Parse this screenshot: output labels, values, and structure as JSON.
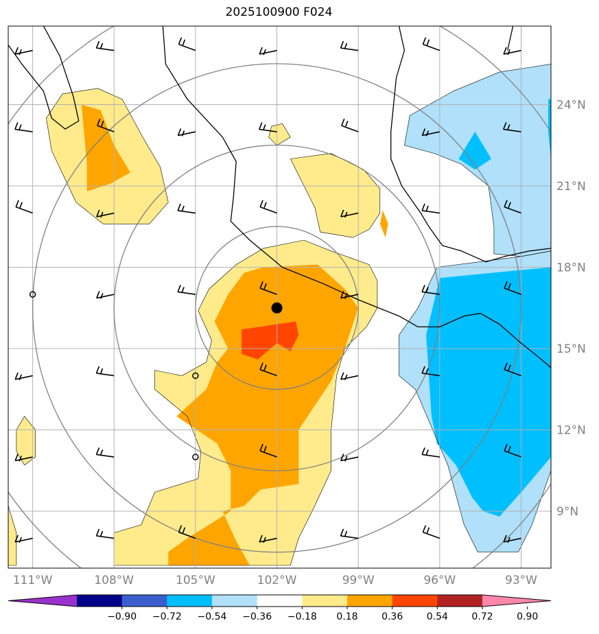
{
  "title": "2025100900 F024",
  "chart_data": {
    "type": "contour_map",
    "title": "2025100900 F024",
    "x_axis": {
      "ticks": [
        -111,
        -108,
        -105,
        -102,
        -99,
        -96,
        -93
      ],
      "labels": [
        "111°W",
        "108°W",
        "105°W",
        "102°W",
        "99°W",
        "96°W",
        "93°W"
      ]
    },
    "y_axis": {
      "ticks": [
        9,
        12,
        15,
        18,
        21,
        24
      ],
      "labels": [
        "9°N",
        "12°N",
        "15°N",
        "18°N",
        "21°N",
        "24°N"
      ]
    },
    "lon_range": [
      -111.9,
      -91.9
    ],
    "lat_range": [
      6.9,
      26.9
    ],
    "grid": true,
    "storm_center": {
      "lon": -102.0,
      "lat": 16.5
    },
    "range_rings": [
      3,
      6,
      9,
      12
    ],
    "colorbar": {
      "ticks": [
        "−0.90",
        "−0.72",
        "−0.54",
        "−0.36",
        "−0.18",
        "0.18",
        "0.36",
        "0.54",
        "0.72",
        "0.90"
      ],
      "colors": [
        "#9932cc",
        "#00008b",
        "#3a5fcd",
        "#00bfff",
        "#b0e0fa",
        "#ffffff",
        "#ffeb8c",
        "#ffa500",
        "#ff4500",
        "#b22222",
        "#ff88aa"
      ],
      "extend": "both"
    },
    "fills": [
      {
        "level": 0.18,
        "color": "#ffeb8c",
        "name": "shade-0.18-main",
        "points": [
          [
            -102.5,
            18.7
          ],
          [
            -101.0,
            19.0
          ],
          [
            -100.0,
            18.6
          ],
          [
            -98.6,
            18.1
          ],
          [
            -98.3,
            17.5
          ],
          [
            -98.3,
            16.5
          ],
          [
            -98.7,
            15.8
          ],
          [
            -99.5,
            15.0
          ],
          [
            -99.8,
            14.0
          ],
          [
            -100.0,
            12.0
          ],
          [
            -100.0,
            10.5
          ],
          [
            -100.7,
            9.0
          ],
          [
            -101.2,
            8.0
          ],
          [
            -101.5,
            7.0
          ],
          [
            -108.0,
            7.0
          ],
          [
            -108.0,
            8.2
          ],
          [
            -107.0,
            8.5
          ],
          [
            -106.5,
            9.7
          ],
          [
            -104.9,
            10.2
          ],
          [
            -104.8,
            11.2
          ],
          [
            -105.3,
            12.5
          ],
          [
            -106.5,
            13.5
          ],
          [
            -106.5,
            14.2
          ],
          [
            -105.5,
            14.0
          ],
          [
            -104.6,
            14.5
          ],
          [
            -104.4,
            15.3
          ],
          [
            -104.9,
            16.4
          ],
          [
            -104.5,
            17.2
          ],
          [
            -103.5,
            18.1
          ]
        ]
      },
      {
        "level": 0.18,
        "color": "#ffeb8c",
        "name": "shade-0.18-north",
        "points": [
          [
            -101.5,
            22.0
          ],
          [
            -100.0,
            22.2
          ],
          [
            -98.8,
            21.6
          ],
          [
            -98.2,
            20.9
          ],
          [
            -98.2,
            20.0
          ],
          [
            -98.6,
            19.4
          ],
          [
            -99.2,
            19.1
          ],
          [
            -100.4,
            19.3
          ],
          [
            -100.6,
            20.2
          ],
          [
            -101.0,
            21.0
          ]
        ]
      },
      {
        "level": 0.18,
        "color": "#ffeb8c",
        "name": "shade-0.18-nw",
        "points": [
          [
            -109.9,
            24.4
          ],
          [
            -108.6,
            24.6
          ],
          [
            -107.7,
            24.2
          ],
          [
            -107.0,
            22.9
          ],
          [
            -106.3,
            21.7
          ],
          [
            -106.0,
            20.4
          ],
          [
            -106.7,
            19.6
          ],
          [
            -108.4,
            19.6
          ],
          [
            -109.4,
            20.4
          ],
          [
            -110.3,
            22.3
          ],
          [
            -110.5,
            23.5
          ]
        ]
      },
      {
        "level": 0.18,
        "color": "#ffeb8c",
        "name": "shade-0.18-sw",
        "points": [
          [
            -111.3,
            12.5
          ],
          [
            -110.9,
            12.0
          ],
          [
            -110.9,
            11.0
          ],
          [
            -111.3,
            10.7
          ],
          [
            -111.6,
            11.2
          ],
          [
            -111.6,
            12.0
          ]
        ]
      },
      {
        "level": 0.18,
        "color": "#ffeb8c",
        "name": "shade-0.18-west-edge",
        "points": [
          [
            -111.9,
            9.2
          ],
          [
            -111.6,
            8.2
          ],
          [
            -111.6,
            7.0
          ],
          [
            -111.9,
            7.0
          ]
        ]
      },
      {
        "level": 0.18,
        "color": "#ffeb8c",
        "name": "shade-0.18-speck",
        "points": [
          [
            -102.2,
            23.2
          ],
          [
            -101.8,
            23.3
          ],
          [
            -101.5,
            22.8
          ],
          [
            -102.0,
            22.5
          ],
          [
            -102.3,
            22.8
          ]
        ]
      },
      {
        "level": 0.36,
        "color": "#ffa500",
        "name": "shade-0.36-main",
        "points": [
          [
            -102.5,
            18.0
          ],
          [
            -100.5,
            18.1
          ],
          [
            -99.5,
            17.2
          ],
          [
            -99.0,
            16.5
          ],
          [
            -99.5,
            15.0
          ],
          [
            -100.0,
            13.8
          ],
          [
            -101.2,
            12.0
          ],
          [
            -101.2,
            10.0
          ],
          [
            -102.6,
            9.8
          ],
          [
            -103.2,
            9.2
          ],
          [
            -104.0,
            9.0
          ],
          [
            -103.5,
            7.9
          ],
          [
            -103.0,
            7.0
          ],
          [
            -106.0,
            7.0
          ],
          [
            -106.0,
            7.5
          ],
          [
            -105.3,
            8.0
          ],
          [
            -104.5,
            8.5
          ],
          [
            -103.7,
            9.0
          ],
          [
            -103.7,
            10.5
          ],
          [
            -104.2,
            11.5
          ],
          [
            -105.7,
            12.5
          ],
          [
            -104.6,
            13.5
          ],
          [
            -104.2,
            14.5
          ],
          [
            -103.8,
            15.0
          ],
          [
            -104.3,
            16.0
          ],
          [
            -103.8,
            17.0
          ],
          [
            -103.2,
            17.8
          ]
        ]
      },
      {
        "level": 0.36,
        "color": "#ffa500",
        "name": "shade-0.36-nw",
        "points": [
          [
            -109.2,
            24.0
          ],
          [
            -108.5,
            23.8
          ],
          [
            -108.0,
            22.5
          ],
          [
            -107.4,
            21.5
          ],
          [
            -108.1,
            21.1
          ],
          [
            -109.0,
            20.8
          ],
          [
            -109.0,
            21.8
          ]
        ]
      },
      {
        "level": 0.36,
        "color": "#ffa500",
        "name": "shade-0.36-speck",
        "points": [
          [
            -98.1,
            20.1
          ],
          [
            -97.9,
            19.6
          ],
          [
            -98.0,
            19.1
          ],
          [
            -98.2,
            19.6
          ]
        ]
      },
      {
        "level": 0.54,
        "color": "#ff4500",
        "name": "shade-0.54-core",
        "points": [
          [
            -103.3,
            15.7
          ],
          [
            -102.0,
            15.9
          ],
          [
            -101.3,
            16.0
          ],
          [
            -101.2,
            15.5
          ],
          [
            -101.5,
            14.9
          ],
          [
            -102.0,
            15.2
          ],
          [
            -102.7,
            14.6
          ],
          [
            -103.3,
            14.8
          ]
        ]
      },
      {
        "level": -0.18,
        "color": "#b0e0fa",
        "name": "shade-neg0.18-gulf",
        "points": [
          [
            -91.9,
            25.5
          ],
          [
            -93.8,
            25.2
          ],
          [
            -95.5,
            24.5
          ],
          [
            -97.1,
            23.6
          ],
          [
            -97.3,
            22.5
          ],
          [
            -96.2,
            22.2
          ],
          [
            -95.2,
            21.8
          ],
          [
            -94.2,
            21.0
          ],
          [
            -94.0,
            19.5
          ],
          [
            -94.0,
            18.5
          ],
          [
            -93.0,
            18.4
          ],
          [
            -91.9,
            18.6
          ]
        ]
      },
      {
        "level": -0.18,
        "color": "#b0e0fa",
        "name": "shade-neg0.18-pacific",
        "points": [
          [
            -96.1,
            18.0
          ],
          [
            -93.0,
            18.4
          ],
          [
            -91.9,
            18.6
          ],
          [
            -91.9,
            10.5
          ],
          [
            -92.6,
            8.5
          ],
          [
            -93.1,
            7.5
          ],
          [
            -94.6,
            7.5
          ],
          [
            -95.1,
            8.5
          ],
          [
            -95.7,
            10.7
          ],
          [
            -96.9,
            13.5
          ],
          [
            -97.5,
            14.0
          ],
          [
            -97.5,
            15.5
          ],
          [
            -96.8,
            16.5
          ]
        ]
      },
      {
        "level": -0.36,
        "color": "#00bfff",
        "name": "shade-neg0.36-pacific",
        "points": [
          [
            -96.0,
            17.6
          ],
          [
            -94.0,
            17.8
          ],
          [
            -91.9,
            18.0
          ],
          [
            -91.9,
            11.0
          ],
          [
            -93.0,
            9.7
          ],
          [
            -93.8,
            8.8
          ],
          [
            -94.4,
            9.0
          ],
          [
            -94.8,
            9.5
          ],
          [
            -95.4,
            10.7
          ],
          [
            -96.1,
            11.5
          ],
          [
            -96.3,
            12.5
          ],
          [
            -96.4,
            14.0
          ],
          [
            -96.5,
            15.5
          ]
        ]
      },
      {
        "level": -0.36,
        "color": "#00bfff",
        "name": "shade-neg0.36-gulf",
        "points": [
          [
            -94.7,
            23.0
          ],
          [
            -94.1,
            22.0
          ],
          [
            -94.7,
            21.6
          ],
          [
            -95.3,
            22.0
          ]
        ]
      },
      {
        "level": -0.36,
        "color": "#00bfff",
        "name": "shade-neg0.36-east",
        "points": [
          [
            -92.0,
            24.2
          ],
          [
            -91.9,
            24.2
          ],
          [
            -91.9,
            22.0
          ],
          [
            -92.0,
            23.0
          ]
        ]
      }
    ],
    "coastlines": [
      {
        "name": "coastline-mainland",
        "points": [
          [
            -106.2,
            26.9
          ],
          [
            -106.1,
            25.5
          ],
          [
            -105.3,
            24.2
          ],
          [
            -104.0,
            22.8
          ],
          [
            -103.5,
            21.9
          ],
          [
            -103.6,
            20.6
          ],
          [
            -103.7,
            19.7
          ],
          [
            -103.0,
            19.0
          ],
          [
            -101.8,
            18.0
          ],
          [
            -100.3,
            17.4
          ],
          [
            -99.0,
            16.8
          ],
          [
            -97.5,
            16.2
          ],
          [
            -96.8,
            15.8
          ],
          [
            -96.0,
            15.8
          ],
          [
            -95.1,
            16.2
          ],
          [
            -94.5,
            16.3
          ],
          [
            -93.8,
            15.9
          ],
          [
            -93.0,
            15.2
          ],
          [
            -92.5,
            14.8
          ],
          [
            -91.9,
            14.3
          ]
        ]
      },
      {
        "name": "coastline-gulf",
        "points": [
          [
            -97.5,
            26.9
          ],
          [
            -97.3,
            26.0
          ],
          [
            -97.6,
            25.0
          ],
          [
            -97.7,
            24.0
          ],
          [
            -97.8,
            23.0
          ],
          [
            -97.8,
            22.0
          ],
          [
            -97.4,
            21.0
          ],
          [
            -96.7,
            20.0
          ],
          [
            -96.4,
            19.5
          ],
          [
            -95.9,
            18.8
          ],
          [
            -95.2,
            18.6
          ],
          [
            -94.3,
            18.2
          ],
          [
            -93.6,
            18.4
          ],
          [
            -92.7,
            18.6
          ],
          [
            -91.9,
            18.7
          ]
        ]
      },
      {
        "name": "coastline-baja",
        "points": [
          [
            -110.6,
            26.9
          ],
          [
            -110.0,
            25.8
          ],
          [
            -109.5,
            24.3
          ],
          [
            -109.3,
            23.4
          ],
          [
            -109.8,
            23.1
          ],
          [
            -110.3,
            23.5
          ],
          [
            -110.6,
            24.5
          ],
          [
            -111.4,
            25.5
          ],
          [
            -111.9,
            26.2
          ]
        ]
      },
      {
        "name": "coastline-east",
        "points": [
          [
            -93.3,
            26.9
          ],
          [
            -93.5,
            26.0
          ]
        ]
      }
    ],
    "wind_stations": [
      {
        "lon": -111,
        "lat": 26
      },
      {
        "lon": -108,
        "lat": 26
      },
      {
        "lon": -105,
        "lat": 26
      },
      {
        "lon": -102,
        "lat": 26
      },
      {
        "lon": -99,
        "lat": 26
      },
      {
        "lon": -96,
        "lat": 26
      },
      {
        "lon": -93,
        "lat": 26
      },
      {
        "lon": -111,
        "lat": 23
      },
      {
        "lon": -108,
        "lat": 23
      },
      {
        "lon": -105,
        "lat": 23
      },
      {
        "lon": -102,
        "lat": 23
      },
      {
        "lon": -99,
        "lat": 23
      },
      {
        "lon": -96,
        "lat": 23
      },
      {
        "lon": -93,
        "lat": 23
      },
      {
        "lon": -111,
        "lat": 20
      },
      {
        "lon": -108,
        "lat": 20
      },
      {
        "lon": -105,
        "lat": 20
      },
      {
        "lon": -102,
        "lat": 20
      },
      {
        "lon": -99,
        "lat": 20
      },
      {
        "lon": -96,
        "lat": 20
      },
      {
        "lon": -93,
        "lat": 20
      },
      {
        "lon": -108,
        "lat": 17
      },
      {
        "lon": -105,
        "lat": 17
      },
      {
        "lon": -102,
        "lat": 17
      },
      {
        "lon": -99,
        "lat": 17
      },
      {
        "lon": -96,
        "lat": 17
      },
      {
        "lon": -93,
        "lat": 17
      },
      {
        "lon": -111,
        "lat": 14
      },
      {
        "lon": -108,
        "lat": 14
      },
      {
        "lon": -102,
        "lat": 14
      },
      {
        "lon": -99,
        "lat": 14
      },
      {
        "lon": -96,
        "lat": 14
      },
      {
        "lon": -93,
        "lat": 14
      },
      {
        "lon": -111,
        "lat": 11
      },
      {
        "lon": -108,
        "lat": 11
      },
      {
        "lon": -102,
        "lat": 11
      },
      {
        "lon": -99,
        "lat": 11
      },
      {
        "lon": -96,
        "lat": 11
      },
      {
        "lon": -93,
        "lat": 11
      },
      {
        "lon": -111,
        "lat": 8
      },
      {
        "lon": -108,
        "lat": 8
      },
      {
        "lon": -105,
        "lat": 8
      },
      {
        "lon": -102,
        "lat": 8
      },
      {
        "lon": -99,
        "lat": 8
      },
      {
        "lon": -96,
        "lat": 8
      },
      {
        "lon": -93,
        "lat": 8
      }
    ],
    "calm_stations": [
      {
        "lon": -111,
        "lat": 17
      },
      {
        "lon": -105,
        "lat": 14
      },
      {
        "lon": -105,
        "lat": 11
      }
    ]
  }
}
